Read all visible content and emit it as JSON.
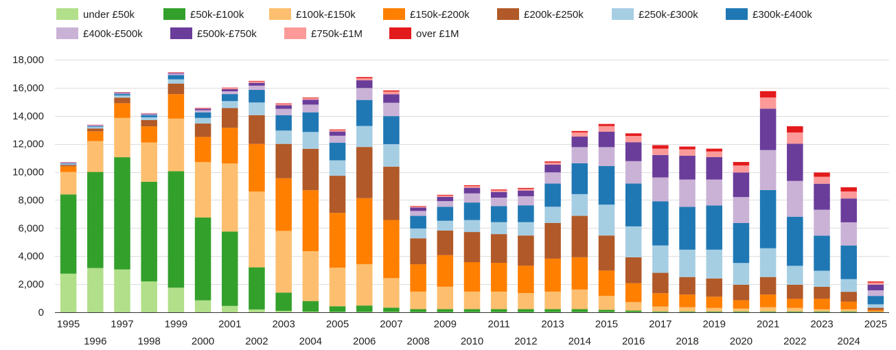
{
  "chart_data": {
    "type": "bar",
    "stacked": true,
    "title": "",
    "xlabel": "",
    "ylabel": "",
    "ylim": [
      0,
      18000
    ],
    "yticks": [
      "0",
      "2,000",
      "4,000",
      "6,000",
      "8,000",
      "10,000",
      "12,000",
      "14,000",
      "16,000",
      "18,000"
    ],
    "ytick_values": [
      0,
      2000,
      4000,
      6000,
      8000,
      10000,
      12000,
      14000,
      16000,
      18000
    ],
    "grid": true,
    "legend_position": "top-left",
    "categories": [
      "1995",
      "1996",
      "1997",
      "1998",
      "1999",
      "2000",
      "2001",
      "2002",
      "2003",
      "2004",
      "2005",
      "2006",
      "2007",
      "2008",
      "2009",
      "2010",
      "2011",
      "2012",
      "2013",
      "2014",
      "2015",
      "2016",
      "2017",
      "2018",
      "2019",
      "2020",
      "2021",
      "2022",
      "2023",
      "2024",
      "2025"
    ],
    "series": [
      {
        "name": "under £50k",
        "color": "#b2df8a",
        "values": [
          2750,
          3150,
          3050,
          2200,
          1750,
          850,
          450,
          200,
          100,
          50,
          30,
          30,
          30,
          20,
          20,
          20,
          20,
          20,
          20,
          20,
          20,
          20,
          10,
          10,
          10,
          10,
          10,
          10,
          10,
          10,
          5
        ]
      },
      {
        "name": "£50k-£100k",
        "color": "#33a02c",
        "values": [
          5650,
          6850,
          8000,
          7100,
          8300,
          5900,
          5300,
          3000,
          1300,
          750,
          400,
          450,
          300,
          200,
          200,
          200,
          200,
          200,
          200,
          200,
          150,
          100,
          50,
          50,
          50,
          50,
          50,
          50,
          50,
          50,
          20
        ]
      },
      {
        "name": "£100k-£150k",
        "color": "#fdbf6f",
        "values": [
          1600,
          2200,
          2800,
          2800,
          3750,
          3950,
          4850,
          5400,
          4400,
          3550,
          2750,
          2950,
          2100,
          1250,
          1600,
          1250,
          1250,
          1150,
          1250,
          1400,
          1000,
          600,
          350,
          300,
          250,
          200,
          300,
          250,
          150,
          150,
          40
        ]
      },
      {
        "name": "£150k-£200k",
        "color": "#ff7f00",
        "values": [
          400,
          700,
          1050,
          1150,
          1750,
          1800,
          2550,
          3400,
          3750,
          4350,
          3900,
          4700,
          4150,
          1950,
          2250,
          2100,
          2050,
          1950,
          2350,
          2300,
          1800,
          1350,
          950,
          900,
          800,
          600,
          900,
          650,
          750,
          550,
          100
        ]
      },
      {
        "name": "£200k-£250k",
        "color": "#b15928",
        "values": [
          100,
          200,
          400,
          450,
          750,
          950,
          1400,
          2050,
          2450,
          2950,
          2650,
          3650,
          3800,
          1850,
          1750,
          2150,
          2050,
          2150,
          2550,
          2950,
          2500,
          1850,
          1450,
          1250,
          1300,
          1100,
          1250,
          1000,
          850,
          700,
          150
        ]
      },
      {
        "name": "£250k-£300k",
        "color": "#a6cee3",
        "values": [
          50,
          100,
          150,
          200,
          300,
          400,
          500,
          900,
          950,
          1200,
          1100,
          1500,
          1600,
          700,
          700,
          850,
          850,
          950,
          1150,
          1550,
          2200,
          2200,
          1950,
          1950,
          2050,
          1550,
          2050,
          1350,
          1150,
          900,
          250
        ]
      },
      {
        "name": "£300k-£400k",
        "color": "#1f78b4",
        "values": [
          50,
          50,
          100,
          150,
          300,
          400,
          500,
          900,
          1100,
          1400,
          1250,
          1850,
          2000,
          900,
          1000,
          1250,
          1150,
          1200,
          1650,
          2200,
          2750,
          3050,
          3150,
          3050,
          3150,
          2850,
          4150,
          3500,
          2500,
          2400,
          600
        ]
      },
      {
        "name": "£400k-£500k",
        "color": "#cab2d6",
        "values": [
          50,
          50,
          50,
          50,
          100,
          150,
          200,
          300,
          450,
          550,
          500,
          850,
          950,
          350,
          400,
          650,
          600,
          650,
          800,
          1150,
          1350,
          1600,
          1700,
          1950,
          1850,
          1850,
          2850,
          2550,
          1850,
          1650,
          400
        ]
      },
      {
        "name": "£500k-£750k",
        "color": "#6a3d9a",
        "values": [
          30,
          30,
          50,
          50,
          50,
          100,
          150,
          200,
          250,
          350,
          300,
          550,
          600,
          250,
          300,
          400,
          400,
          400,
          550,
          750,
          1100,
          1350,
          1600,
          1700,
          1600,
          1750,
          2950,
          2650,
          1850,
          1700,
          400
        ]
      },
      {
        "name": "£750k-£1M",
        "color": "#fb9a99",
        "values": [
          20,
          20,
          30,
          30,
          40,
          50,
          80,
          100,
          100,
          100,
          100,
          150,
          200,
          80,
          100,
          120,
          120,
          120,
          150,
          300,
          400,
          450,
          450,
          450,
          400,
          500,
          800,
          800,
          500,
          500,
          150
        ]
      },
      {
        "name": "over £1M",
        "color": "#e31a1c",
        "values": [
          10,
          10,
          10,
          10,
          20,
          20,
          30,
          40,
          40,
          50,
          50,
          80,
          80,
          30,
          50,
          60,
          60,
          70,
          80,
          100,
          150,
          180,
          250,
          200,
          200,
          250,
          450,
          450,
          300,
          300,
          80
        ]
      }
    ]
  }
}
